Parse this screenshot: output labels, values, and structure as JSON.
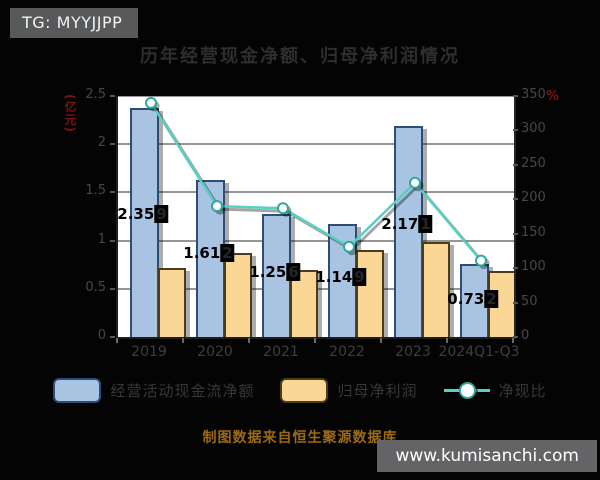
{
  "badge": {
    "text": "TG: MYYJJPP"
  },
  "title": "历年经营现金净额、归母净利润情况",
  "note": "制图数据来自恒生聚源数据库",
  "site": "www.kumisanchi.com",
  "colors": {
    "background": "#040404",
    "plot_background": "#ffffff",
    "cashflow_bar_fill": "#a9c4e3",
    "cashflow_bar_border": "#2f4d72",
    "profit_bar_fill": "#fbd795",
    "profit_bar_border": "#4a3c1c",
    "ratio_line": "#57d0c2",
    "marker_fill": "#ffffff",
    "gridline": "#969696",
    "axis_text": "#474747",
    "title_text": "#2e2e2e",
    "unit_text": "#7c1212",
    "note_text": "#9c6a14",
    "badge_bg": "#58595b",
    "site_bg": "#646467"
  },
  "chart_data": {
    "type": "bar+line combo",
    "title": "历年经营现金净额、归母净利润情况",
    "categories": [
      "2019",
      "2020",
      "2021",
      "2022",
      "2023",
      "2024Q1-Q3"
    ],
    "series": [
      {
        "name": "经营活动现金流净额",
        "type": "bar",
        "axis": "left",
        "values": [
          2.359,
          1.612,
          1.256,
          1.149,
          2.171,
          0.732
        ],
        "labels": [
          "2.359",
          "1.612",
          "1.256",
          "1.149",
          "2.171",
          "0.732"
        ]
      },
      {
        "name": "归母净利润",
        "type": "bar",
        "axis": "left",
        "values": [
          0.69,
          0.85,
          0.67,
          0.88,
          0.97,
          0.66
        ]
      },
      {
        "name": "净现比",
        "type": "line",
        "axis": "right",
        "values": [
          340,
          190,
          187,
          131,
          224,
          111
        ]
      }
    ],
    "left_axis": {
      "unit": "(亿元)",
      "min": 0,
      "max": 2.5,
      "tick_step": 0.5,
      "ticks": [
        "0",
        "0.5",
        "1",
        "1.5",
        "2",
        "2.5"
      ]
    },
    "right_axis": {
      "unit": "%",
      "min": 0,
      "max": 350,
      "tick_step": 50,
      "ticks": [
        "0",
        "50",
        "100",
        "150",
        "200",
        "250",
        "300",
        "350"
      ]
    },
    "grid": true,
    "legend_position": "bottom"
  }
}
